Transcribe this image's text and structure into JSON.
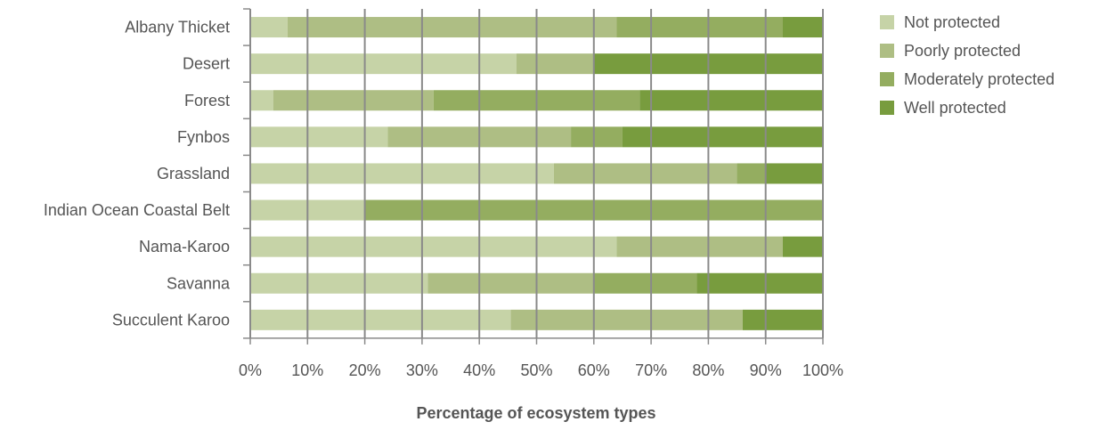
{
  "chart_data": {
    "type": "bar",
    "orientation": "horizontal",
    "stacked": true,
    "title": "",
    "xlabel": "Percentage of ecosystem types",
    "ylabel": "",
    "xlim": [
      0,
      100
    ],
    "grid": true,
    "legend_position": "top-right",
    "x_ticks": [
      "0%",
      "10%",
      "20%",
      "30%",
      "40%",
      "50%",
      "60%",
      "70%",
      "80%",
      "90%",
      "100%"
    ],
    "categories": [
      "Albany Thicket",
      "Desert",
      "Forest",
      "Fynbos",
      "Grassland",
      "Indian Ocean Coastal Belt",
      "Nama-Karoo",
      "Savanna",
      "Succulent Karoo"
    ],
    "series": [
      {
        "name": "Not protected",
        "color": "#c6d3a7",
        "values": [
          6.5,
          46.5,
          4,
          24,
          53,
          20,
          64,
          31,
          45.5
        ]
      },
      {
        "name": "Poorly protected",
        "color": "#aebe84",
        "values": [
          57.5,
          13.5,
          28,
          32,
          32,
          0,
          29,
          29,
          40.5
        ]
      },
      {
        "name": "Moderately protected",
        "color": "#94ad60",
        "values": [
          29,
          0,
          36,
          9,
          5,
          80,
          0,
          18,
          0
        ]
      },
      {
        "name": "Well protected",
        "color": "#789c3e",
        "values": [
          7,
          40,
          32,
          35,
          10,
          0,
          7,
          22,
          14
        ]
      }
    ]
  }
}
